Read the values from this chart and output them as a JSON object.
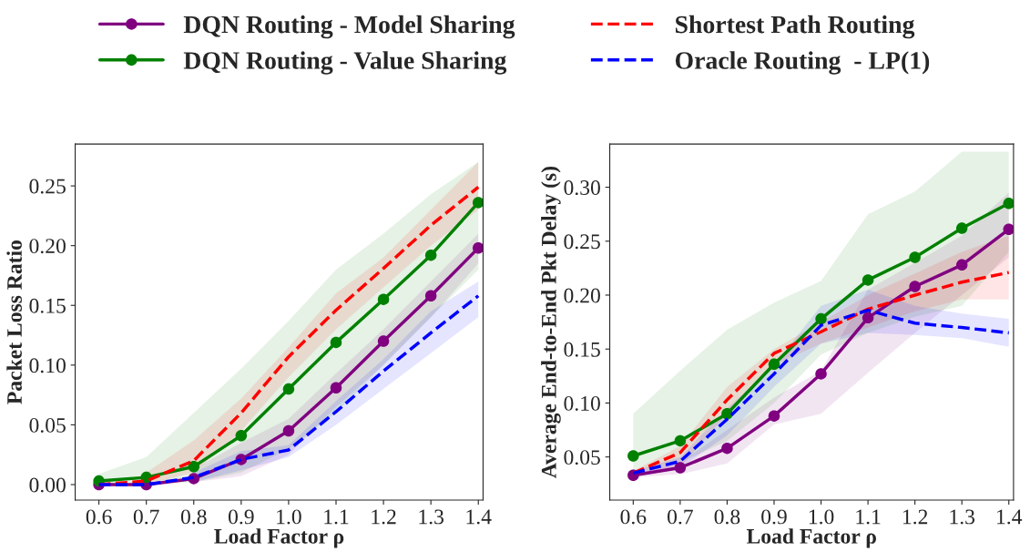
{
  "chart_data": [
    {
      "type": "line",
      "xlabel": "Load Factor ρ",
      "ylabel": "Packet Loss Ratio",
      "x": [
        0.6,
        0.7,
        0.8,
        0.9,
        1.0,
        1.1,
        1.2,
        1.3,
        1.4
      ],
      "xlim": [
        0.55,
        1.41
      ],
      "xticks": [
        0.6,
        0.7,
        0.8,
        0.9,
        {
          "value": 1.0,
          "label": "1.0"
        },
        1.1,
        1.2,
        1.3,
        1.4
      ],
      "ylim": [
        -0.013,
        0.285
      ],
      "yticks": [
        {
          "value": 0,
          "label": "0.00"
        },
        0.05,
        {
          "value": 0.1,
          "label": "0.10"
        },
        0.15,
        {
          "value": 0.2,
          "label": "0.20"
        },
        0.25
      ],
      "grid": false,
      "legend": "top",
      "series": [
        {
          "name": "DQN Routing - Model Sharing",
          "color": "#800080",
          "marker": "circle",
          "line_style": "solid",
          "values": [
            0,
            0,
            0.005,
            0.021,
            0.045,
            0.081,
            0.12,
            0.158,
            0.198
          ],
          "lower": [
            null,
            null,
            0.002,
            0.007,
            0.025,
            0.065,
            0.1,
            0.14,
            0.185
          ],
          "upper": [
            null,
            null,
            0.013,
            0.035,
            0.055,
            0.093,
            0.13,
            0.17,
            0.21
          ]
        },
        {
          "name": "DQN Routing - Value Sharing",
          "color": "#008000",
          "marker": "circle",
          "line_style": "solid",
          "values": [
            0.003,
            0.006,
            0.015,
            0.041,
            0.08,
            0.119,
            0.155,
            0.192,
            0.236
          ],
          "lower": [
            0,
            0,
            0.002,
            0.01,
            0.03,
            0.06,
            0.1,
            0.14,
            0.18
          ],
          "upper": [
            0.009,
            0.023,
            0.06,
            0.097,
            0.137,
            0.18,
            0.21,
            0.243,
            0.27
          ]
        },
        {
          "name": "Shortest Path Routing",
          "color": "#ff0000",
          "marker": "none",
          "line_style": "dashed",
          "values": [
            0,
            0.003,
            0.02,
            0.06,
            0.107,
            0.146,
            0.181,
            0.217,
            0.249
          ],
          "lower": [
            null,
            0,
            0.01,
            0.045,
            0.09,
            0.13,
            0.165,
            0.2,
            0.23
          ],
          "upper": [
            null,
            0.01,
            0.037,
            0.072,
            0.115,
            0.16,
            0.19,
            0.23,
            0.27
          ]
        },
        {
          "name": "Oracle Routing  - LP(1)",
          "color": "#0000ff",
          "marker": "none",
          "line_style": "dashed",
          "values": [
            0,
            0,
            0.006,
            0.021,
            0.029,
            0.061,
            0.095,
            0.127,
            0.158
          ],
          "lower": [
            null,
            null,
            0.002,
            0.012,
            0.023,
            0.05,
            0.08,
            0.11,
            0.14
          ],
          "upper": [
            null,
            null,
            0.01,
            0.028,
            0.033,
            0.07,
            0.105,
            0.145,
            0.17
          ]
        }
      ]
    },
    {
      "type": "line",
      "xlabel": "Load Factor ρ",
      "ylabel": "Average End-to-End Pkt Delay (s)",
      "x": [
        0.6,
        0.7,
        0.8,
        0.9,
        1.0,
        1.1,
        1.2,
        1.3,
        1.4
      ],
      "xlim": [
        0.55,
        1.41
      ],
      "xticks": [
        0.6,
        0.7,
        0.8,
        0.9,
        {
          "value": 1.0,
          "label": "1.0"
        },
        1.1,
        1.2,
        1.3,
        1.4
      ],
      "ylim": [
        0.01,
        0.34
      ],
      "yticks": [
        0.05,
        {
          "value": 0.1,
          "label": "0.10"
        },
        0.15,
        {
          "value": 0.2,
          "label": "0.20"
        },
        0.25,
        {
          "value": 0.3,
          "label": "0.30"
        }
      ],
      "grid": false,
      "series": [
        {
          "color": "#800080",
          "marker": "circle",
          "line_style": "solid",
          "values": [
            0.033,
            0.04,
            0.058,
            0.088,
            0.127,
            0.179,
            0.208,
            0.228,
            0.261
          ],
          "lower": [
            0.031,
            0.034,
            0.044,
            0.08,
            0.09,
            0.128,
            0.165,
            0.2,
            0.235
          ],
          "upper": [
            0.035,
            0.045,
            0.075,
            0.105,
            0.13,
            0.205,
            0.23,
            0.255,
            0.295
          ]
        },
        {
          "color": "#008000",
          "marker": "circle",
          "line_style": "solid",
          "values": [
            0.051,
            0.065,
            0.09,
            0.136,
            0.178,
            0.214,
            0.235,
            0.262,
            0.285
          ],
          "lower": [
            0.035,
            0.045,
            0.065,
            0.1,
            0.145,
            0.165,
            0.18,
            0.19,
            0.24
          ],
          "upper": [
            0.09,
            0.13,
            0.168,
            0.193,
            0.213,
            0.275,
            0.296,
            0.333,
            0.333
          ]
        },
        {
          "color": "#ff0000",
          "marker": "none",
          "line_style": "dashed",
          "values": [
            0.035,
            0.054,
            0.103,
            0.146,
            0.166,
            0.187,
            0.2,
            0.212,
            0.221
          ],
          "lower": [
            0.033,
            0.04,
            0.09,
            0.135,
            0.155,
            0.17,
            0.185,
            0.196,
            0.196
          ],
          "upper": [
            0.037,
            0.06,
            0.115,
            0.15,
            0.175,
            0.2,
            0.22,
            0.24,
            0.255
          ]
        },
        {
          "color": "#0000ff",
          "marker": "none",
          "line_style": "dashed",
          "values": [
            0.035,
            0.046,
            0.085,
            0.127,
            0.172,
            0.186,
            0.174,
            0.17,
            0.165
          ],
          "lower": [
            0.033,
            0.04,
            0.07,
            0.115,
            0.155,
            0.165,
            0.163,
            0.16,
            0.152
          ],
          "upper": [
            0.037,
            0.05,
            0.095,
            0.135,
            0.19,
            0.205,
            0.19,
            0.183,
            0.178
          ]
        }
      ]
    }
  ]
}
